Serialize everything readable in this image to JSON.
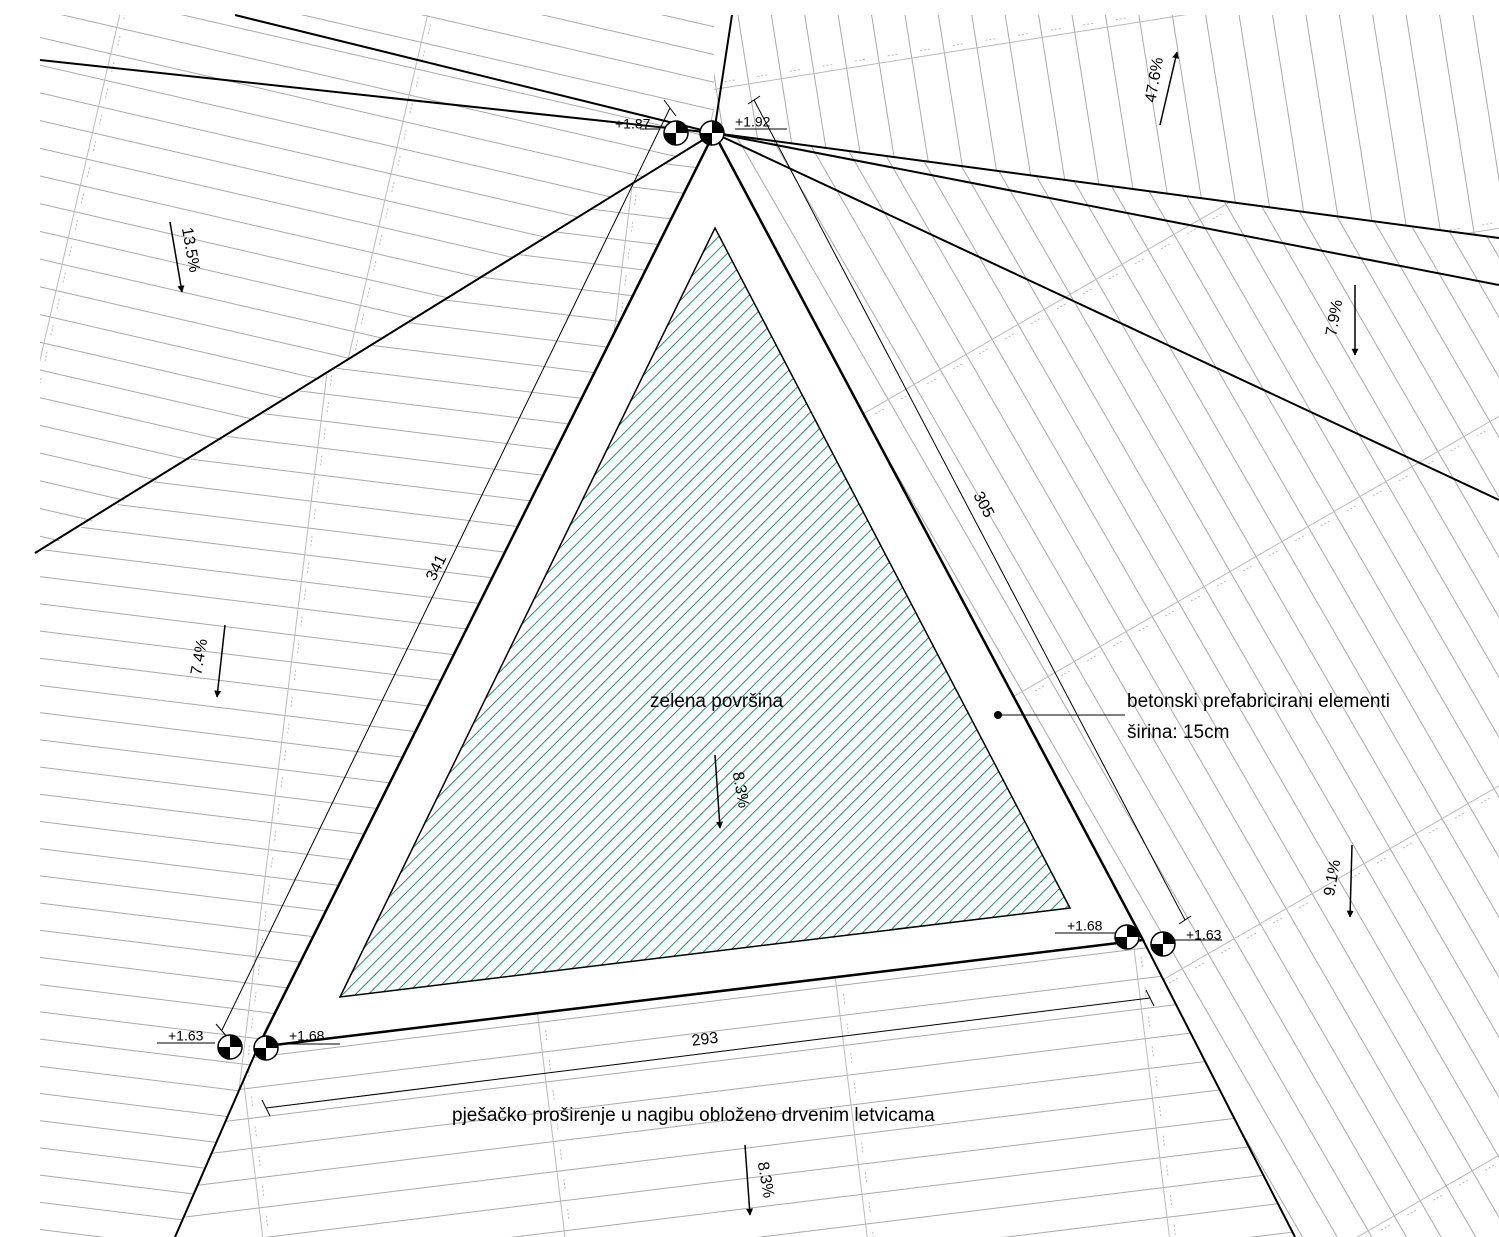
{
  "labels": {
    "green_area": "zelena površina",
    "concrete": "betonski prefabricirani elementi",
    "concrete_width": "širina: 15cm",
    "walkway": "pješačko proširenje u nagibu obloženo drvenim letvicama"
  },
  "elevations": [
    "+1.87",
    "+1.92",
    "+1.68",
    "+1.63",
    "+1.63",
    "+1.68"
  ],
  "slopes": [
    "47.6%",
    "13.5%",
    "7.9%",
    "7.4%",
    "8.3%",
    "9.1%",
    "8.3%"
  ],
  "dimensions": [
    "341",
    "305",
    "293"
  ]
}
